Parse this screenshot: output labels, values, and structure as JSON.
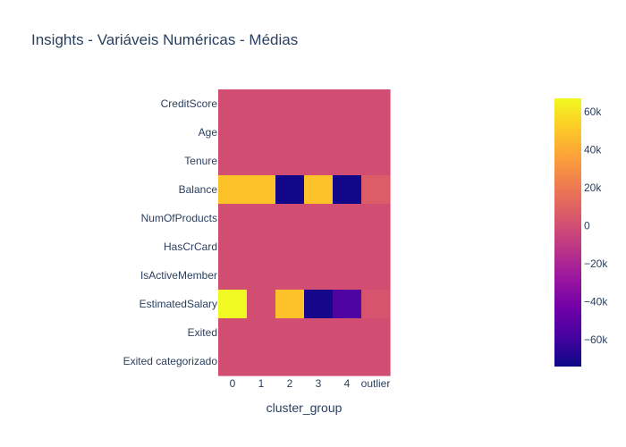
{
  "chart_data": {
    "type": "heatmap",
    "title": "Insights - Variáveis Numéricas - Médias",
    "xlabel": "cluster_group",
    "ylabel": "",
    "x_categories": [
      "0",
      "1",
      "2",
      "3",
      "4",
      "outlier"
    ],
    "y_categories": [
      "CreditScore",
      "Age",
      "Tenure",
      "Balance",
      "NumOfProducts",
      "HasCrCard",
      "IsActiveMember",
      "EstimatedSalary",
      "Exited",
      "Exited categorizado"
    ],
    "values": [
      [
        0,
        0,
        0,
        0,
        0,
        0
      ],
      [
        0,
        0,
        0,
        0,
        0,
        0
      ],
      [
        0,
        0,
        0,
        0,
        0,
        0
      ],
      [
        48000,
        48000,
        -73000,
        48000,
        -73000,
        7000
      ],
      [
        0,
        0,
        0,
        0,
        0,
        0
      ],
      [
        0,
        0,
        0,
        0,
        0,
        0
      ],
      [
        0,
        0,
        0,
        0,
        0,
        0
      ],
      [
        67000,
        0,
        48000,
        -72000,
        -55000,
        3000
      ],
      [
        0,
        0,
        0,
        0,
        0,
        0
      ],
      [
        0,
        0,
        0,
        0,
        0,
        0
      ]
    ],
    "zlim": [
      -74000,
      67000
    ],
    "colorbar": {
      "tick_values": [
        60000,
        40000,
        20000,
        0,
        -20000,
        -40000,
        -60000
      ],
      "tick_labels": [
        "60k",
        "40k",
        "20k",
        "0",
        "−20k",
        "−40k",
        "−60k"
      ]
    },
    "colorscale": [
      "#0d0887",
      "#46039f",
      "#7201a8",
      "#9c179e",
      "#bd3786",
      "#d8576b",
      "#ed7953",
      "#fb9f3a",
      "#fdca26",
      "#f0f921"
    ]
  }
}
